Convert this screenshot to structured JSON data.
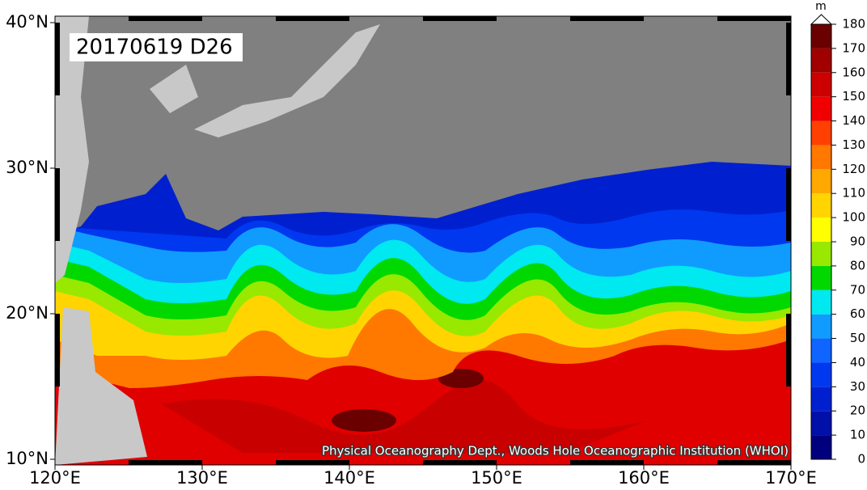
{
  "map": {
    "title": "20170619 D26",
    "credit": "Physical Oceanography Dept., Woods Hole Oceanographic Institution (WHOI)",
    "lat_ticks": [
      {
        "value": 40,
        "label": "40°N"
      },
      {
        "value": 30,
        "label": "30°N"
      },
      {
        "value": 20,
        "label": "20°N"
      },
      {
        "value": 10,
        "label": "10°N"
      }
    ],
    "lon_ticks": [
      {
        "value": 120,
        "label": "120°E"
      },
      {
        "value": 130,
        "label": "130°E"
      },
      {
        "value": 140,
        "label": "140°E"
      },
      {
        "value": 150,
        "label": "150°E"
      },
      {
        "value": 160,
        "label": "160°E"
      },
      {
        "value": 170,
        "label": "170°E"
      }
    ],
    "colorbar": {
      "unit": "m",
      "ticks": [
        0,
        10,
        20,
        30,
        40,
        50,
        60,
        70,
        80,
        90,
        100,
        110,
        120,
        130,
        140,
        150,
        160,
        170,
        180
      ],
      "colors": [
        "#00007f",
        "#0010a8",
        "#0020d0",
        "#0038f0",
        "#1064ff",
        "#109cff",
        "#00e8f0",
        "#00d800",
        "#98e800",
        "#ffff00",
        "#ffd400",
        "#ffa800",
        "#ff7800",
        "#ff4000",
        "#f00000",
        "#cc0000",
        "#a00000",
        "#6a0000"
      ]
    }
  }
}
